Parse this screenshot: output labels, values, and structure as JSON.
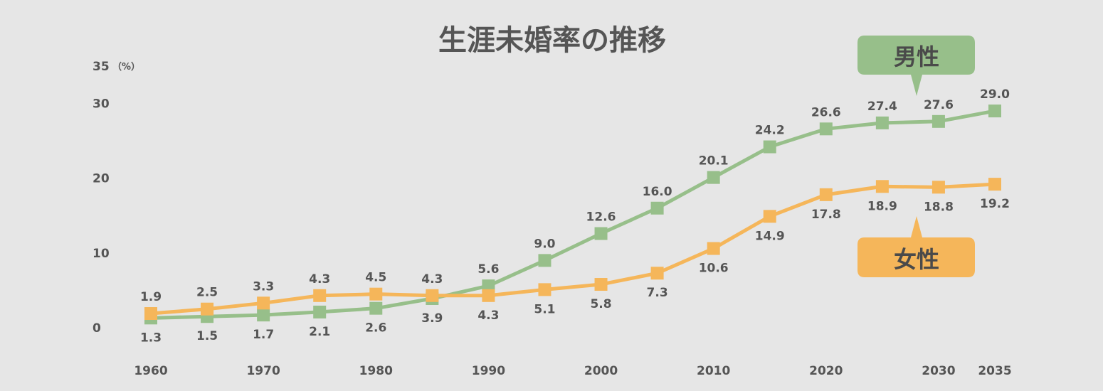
{
  "chart_data": {
    "type": "line",
    "title": "生涯未婚率の推移",
    "unit_label": "（%）",
    "ylim": [
      0,
      35
    ],
    "y_ticks": [
      0,
      10,
      20,
      30,
      35
    ],
    "x_ticks": [
      "1960",
      "1970",
      "1980",
      "1990",
      "2000",
      "2010",
      "2020",
      "2030",
      "2035"
    ],
    "x": [
      1960,
      1965,
      1970,
      1975,
      1980,
      1985,
      1990,
      1995,
      2000,
      2005,
      2010,
      2015,
      2020,
      2025,
      2030,
      2035
    ],
    "series": [
      {
        "name": "男性",
        "color": "#97bf8a",
        "values": [
          1.3,
          1.5,
          1.7,
          2.1,
          2.6,
          3.9,
          5.6,
          9.0,
          12.6,
          16.0,
          20.1,
          24.2,
          26.6,
          27.4,
          27.6,
          29.0
        ],
        "labels": [
          "1.3",
          "1.5",
          "1.7",
          "2.1",
          "2.6",
          "3.9",
          "5.6",
          "9.0",
          "12.6",
          "16.0",
          "20.1",
          "24.2",
          "26.6",
          "27.4",
          "27.6",
          "29.0"
        ]
      },
      {
        "name": "女性",
        "color": "#f5b65a",
        "values": [
          1.9,
          2.5,
          3.3,
          4.3,
          4.5,
          4.3,
          4.3,
          5.1,
          5.8,
          7.3,
          10.6,
          14.9,
          17.8,
          18.9,
          18.8,
          19.2
        ],
        "labels": [
          "1.9",
          "2.5",
          "3.3",
          "4.3",
          "4.5",
          "4.3",
          "4.3",
          "5.1",
          "5.8",
          "7.3",
          "10.6",
          "14.9",
          "17.8",
          "18.9",
          "18.8",
          "19.2"
        ]
      }
    ],
    "legend": {
      "male_label": "男性",
      "female_label": "女性"
    }
  }
}
